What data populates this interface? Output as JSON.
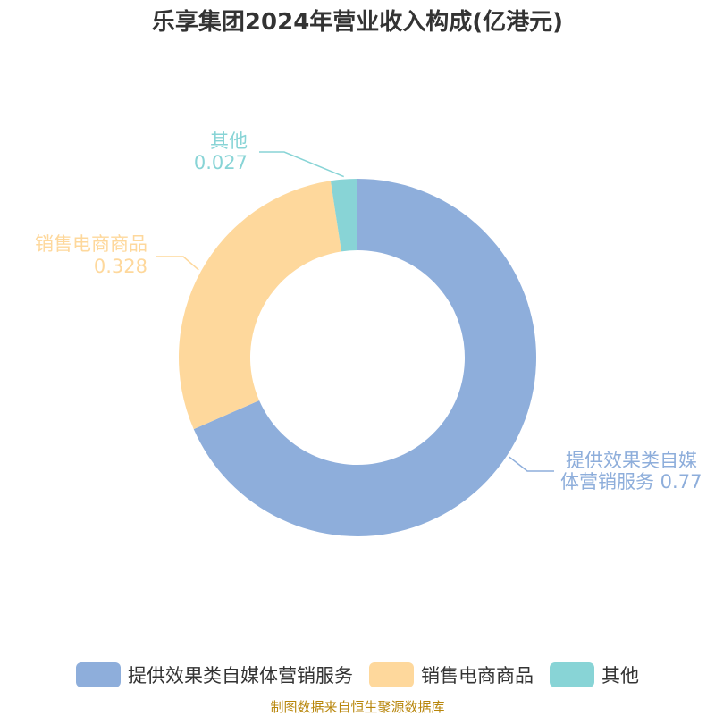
{
  "chart_data": {
    "type": "pie",
    "donut": true,
    "title": "乐享集团2024年营业收入构成(亿港元)",
    "slices": [
      {
        "label": "提供效果类自媒体营销服务",
        "label_lines": [
          "提供效果类自媒",
          "体营销服务 0.77"
        ],
        "value": 0.77,
        "color": "#8eaedb"
      },
      {
        "label": "销售电商商品",
        "label_lines": [
          "销售电商商品",
          "0.328"
        ],
        "value": 0.328,
        "color": "#fed89c"
      },
      {
        "label": "其他",
        "label_lines": [
          "其他",
          "0.027"
        ],
        "value": 0.027,
        "color": "#88d4d6"
      }
    ],
    "legend_position": "bottom"
  },
  "source": "制图数据来自恒生聚源数据库"
}
